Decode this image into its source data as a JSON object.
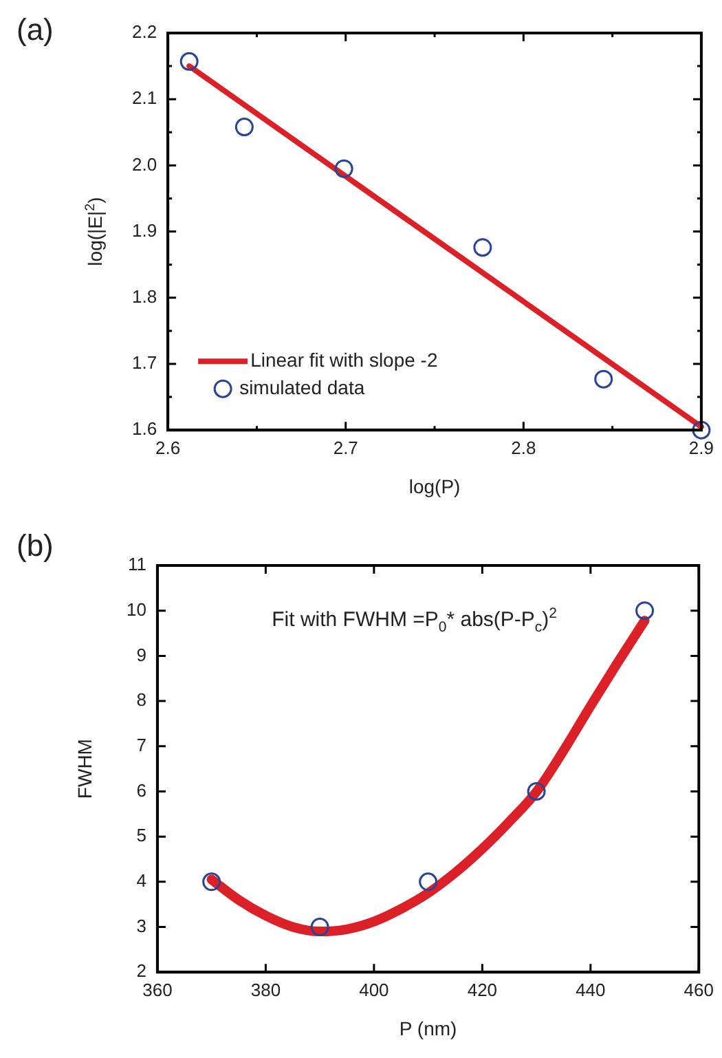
{
  "chart_data": [
    {
      "type": "scatter",
      "xlabel": "log(P)",
      "ylabel": "log(|E|$^{2}$)",
      "annotations": [
        "(a)"
      ],
      "xlim": [
        2.6,
        2.9
      ],
      "ylim": [
        1.6,
        2.2
      ],
      "xticks": [
        2.6,
        {
          "value": 2.65,
          "label": null
        },
        2.7,
        {
          "value": 2.75,
          "label": null
        },
        2.8,
        {
          "value": 2.85,
          "label": null
        },
        2.9
      ],
      "yticks": [
        1.6,
        {
          "value": 1.65,
          "label": null
        },
        1.7,
        {
          "value": 1.75,
          "label": null
        },
        1.8,
        {
          "value": 1.85,
          "label": null
        },
        1.9,
        {
          "value": 1.95,
          "label": null
        },
        "2.0",
        {
          "value": 2.05,
          "label": null
        },
        2.1,
        {
          "value": 2.15,
          "label": null
        },
        2.2
      ],
      "grid": false,
      "legend": "bottom left",
      "series": [
        {
          "name": "Linear fit with slope -2",
          "type": "line",
          "marker": "none",
          "line_style": "solid",
          "color": "#dc2027",
          "x": [
            2.612,
            2.9
          ],
          "values": [
            2.15,
            1.605
          ]
        },
        {
          "name": "simulated data",
          "marker": "circle",
          "color": "#2b4496",
          "x": [
            2.612,
            2.643,
            2.699,
            2.777,
            2.845,
            2.9
          ],
          "values": [
            2.157,
            2.058,
            1.995,
            1.876,
            1.677,
            1.6
          ]
        }
      ]
    },
    {
      "type": "scatter",
      "xlabel": "P (nm)",
      "ylabel": "FWHM",
      "annotations": [
        "(b)",
        "Fit with FWHM =P$_{0}$* abs(P-P$_{c}$)$^{2}$"
      ],
      "xlim": [
        360,
        460
      ],
      "ylim": [
        2,
        11
      ],
      "xticks": [
        360,
        380,
        400,
        420,
        440,
        460
      ],
      "yticks": [
        2,
        3,
        4,
        5,
        6,
        7,
        8,
        9,
        10,
        11
      ],
      "grid": false,
      "legend": false,
      "series": [
        {
          "type": "line",
          "marker": "none",
          "line_style": "solid",
          "color": "#dc2027",
          "x": [
            370,
            375,
            380,
            385,
            390,
            395,
            400,
            405,
            410,
            415,
            420,
            425,
            430,
            435,
            440,
            445,
            450
          ],
          "values": [
            4.05,
            3.6,
            3.25,
            3.0,
            2.9,
            2.95,
            3.12,
            3.4,
            3.75,
            4.2,
            4.73,
            5.33,
            5.99,
            6.9,
            7.89,
            8.85,
            9.78
          ]
        },
        {
          "marker": "circle",
          "color": "#2b4496",
          "x": [
            370,
            390,
            410,
            430,
            450
          ],
          "values": [
            4,
            3,
            4,
            6,
            10
          ]
        }
      ]
    }
  ]
}
